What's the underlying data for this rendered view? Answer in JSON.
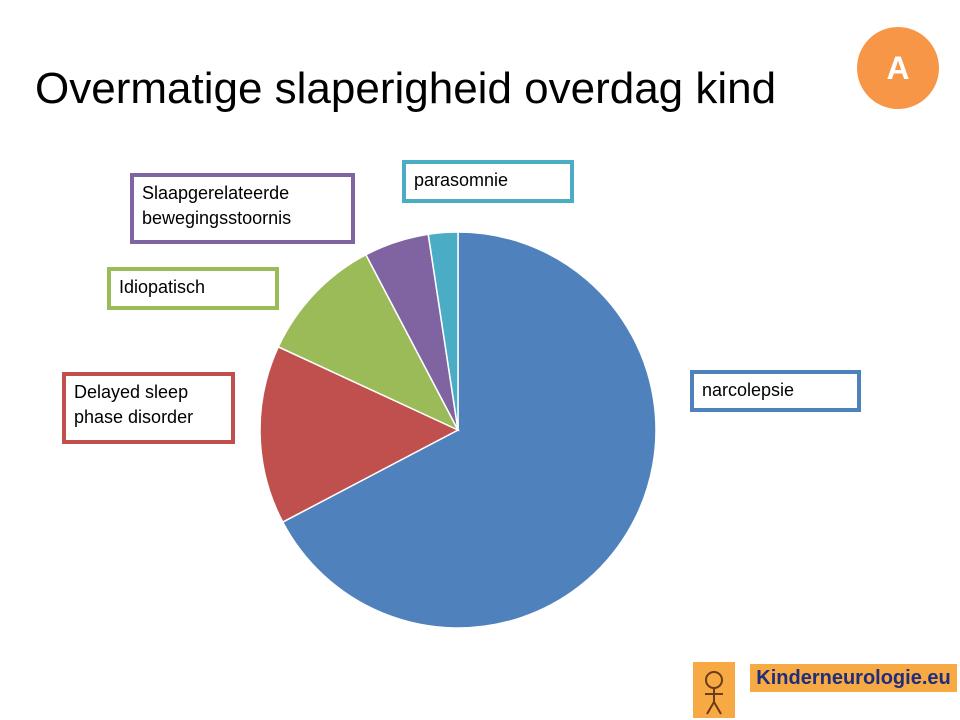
{
  "title": "Overmatige slaperigheid overdag kind",
  "badge": "A",
  "footer": {
    "logo_text": "Kinderneurologie.eu"
  },
  "chart_data": {
    "type": "pie",
    "categories": [
      "narcolepsie",
      "Delayed sleep phase disorder",
      "Idiopatisch",
      "Slaapgerelateerde bewegingsstoornis",
      "parasomnie"
    ],
    "values": [
      67.3,
      14.6,
      10.4,
      5.3,
      2.4
    ],
    "colors": [
      "#4f81bd",
      "#c0504d",
      "#9bbb59",
      "#8064a2",
      "#4bacc6"
    ]
  }
}
